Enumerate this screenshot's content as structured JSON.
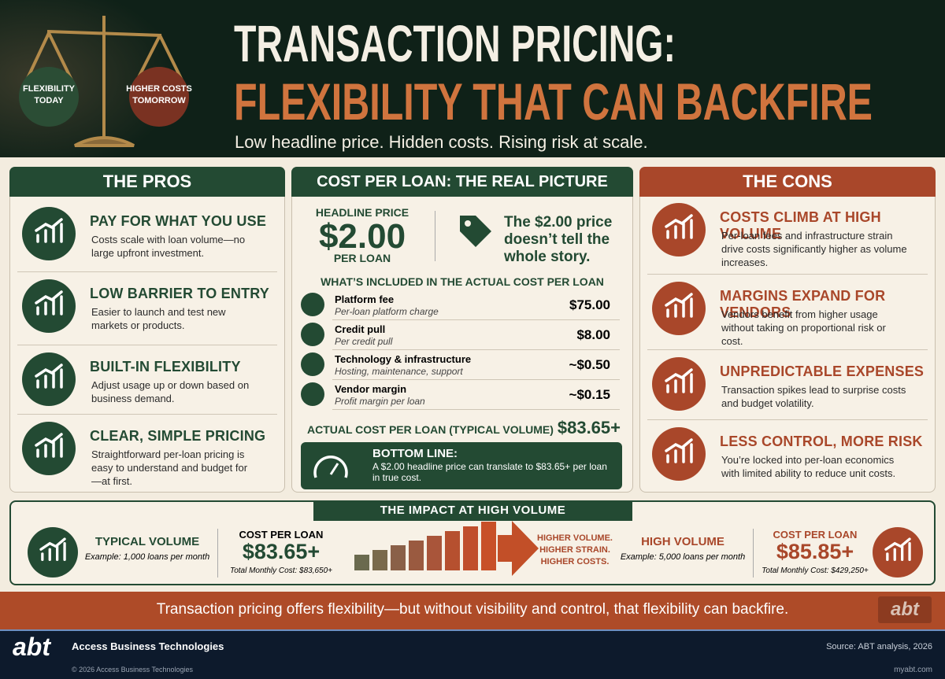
{
  "header": {
    "title_line1": "TRANSACTION PRICING:",
    "title_line2": "FLEXIBILITY THAT CAN BACKFIRE",
    "subtitle": "Low headline price. Hidden costs. Rising risk at scale.",
    "scale_left": "FLEXIBILITY TODAY",
    "scale_right": "HIGHER COSTS TOMORROW"
  },
  "pros": {
    "title": "THE PROS",
    "items": [
      {
        "title": "PAY FOR WHAT YOU USE",
        "text": "Costs scale with loan volume—no large upfront investment."
      },
      {
        "title": "LOW BARRIER TO ENTRY",
        "text": "Easier to launch and test new markets or products."
      },
      {
        "title": "BUILT-IN FLEXIBILITY",
        "text": "Adjust usage up or down based on business demand."
      },
      {
        "title": "CLEAR, SIMPLE PRICING",
        "text": "Straightforward per-loan pricing is easy to understand and budget for—at first."
      }
    ]
  },
  "cost": {
    "title": "COST PER LOAN: THE REAL PICTURE",
    "headline_label": "HEADLINE PRICE",
    "headline_price": "$2.00",
    "headline_unit": "PER LOAN",
    "callout": "The $2.00 price doesn’t tell the whole story.",
    "included_title": "WHAT’S INCLUDED IN THE ACTUAL COST PER LOAN",
    "items": [
      {
        "name": "Platform fee",
        "desc": "Per-loan platform charge",
        "amount": "$75.00"
      },
      {
        "name": "Credit pull",
        "desc": "Per credit pull",
        "amount": "$8.00"
      },
      {
        "name": "Technology & infrastructure",
        "desc": "Hosting, maintenance, support",
        "amount": "~$0.50"
      },
      {
        "name": "Vendor margin",
        "desc": "Profit margin per loan",
        "amount": "~$0.15"
      }
    ],
    "total_label": "ACTUAL COST PER LOAN (TYPICAL VOLUME)",
    "total_amount": "$83.65+",
    "bottom_line_title": "BOTTOM LINE:",
    "bottom_line_text": "A $2.00 headline price can translate to $83.65+ per loan in true cost."
  },
  "cons": {
    "title": "THE CONS",
    "items": [
      {
        "title": "COSTS CLIMB AT HIGH VOLUME",
        "text": "Per-loan fees and infrastructure strain drive costs significantly higher as volume increases."
      },
      {
        "title": "MARGINS EXPAND FOR VENDORS",
        "text": "Vendors benefit from higher usage without taking on proportional risk or cost."
      },
      {
        "title": "UNPREDICTABLE EXPENSES",
        "text": "Transaction spikes lead to surprise costs and budget volatility."
      },
      {
        "title": "LESS CONTROL, MORE RISK",
        "text": "You’re locked into per-loan economics with limited ability to reduce unit costs."
      }
    ]
  },
  "impact": {
    "title": "THE IMPACT AT HIGH VOLUME",
    "typical": {
      "label": "TYPICAL VOLUME",
      "example": "Example: 1,000 loans per month"
    },
    "typical_cost": {
      "label": "COST PER LOAN",
      "amount": "$83.65+",
      "total": "Total Monthly Cost: $83,650+"
    },
    "arrow_text": [
      "HIGHER VOLUME.",
      "HIGHER STRAIN.",
      "HIGHER COSTS."
    ],
    "high": {
      "label": "HIGH VOLUME",
      "example": "Example: 5,000 loans per month"
    },
    "high_cost": {
      "label": "COST PER LOAN",
      "amount": "$85.85+",
      "total": "Total Monthly Cost: $429,250+"
    }
  },
  "banner": "Transaction pricing offers flexibility—but without visibility and control, that flexibility can backfire.",
  "footer": {
    "logo": "abt",
    "company": "Access Business Technologies",
    "source": "Source: ABT analysis, 2026",
    "copyright": "© 2026 Access Business Technologies",
    "url": "myabt.com"
  }
}
